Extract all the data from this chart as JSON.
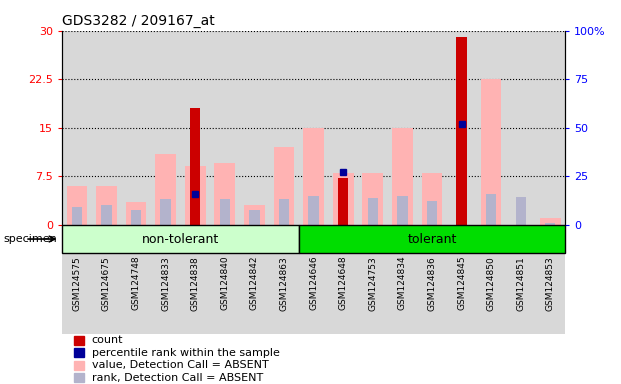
{
  "title": "GDS3282 / 209167_at",
  "samples": [
    "GSM124575",
    "GSM124675",
    "GSM124748",
    "GSM124833",
    "GSM124838",
    "GSM124840",
    "GSM124842",
    "GSM124863",
    "GSM124646",
    "GSM124648",
    "GSM124753",
    "GSM124834",
    "GSM124836",
    "GSM124845",
    "GSM124850",
    "GSM124851",
    "GSM124853"
  ],
  "group_labels": [
    "non-tolerant",
    "tolerant"
  ],
  "group_non_tolerant_count": 8,
  "group_tolerant_count": 9,
  "count_values": [
    0,
    0,
    0,
    0,
    18,
    0,
    0,
    0,
    0,
    7.2,
    0,
    0,
    0,
    29,
    0,
    0,
    0
  ],
  "percentile_values": [
    0,
    0,
    0,
    0,
    16,
    0,
    0,
    0,
    0,
    27,
    0,
    0,
    0,
    52,
    0,
    0,
    0
  ],
  "value_absent": [
    6,
    6,
    3.5,
    11,
    9,
    9.5,
    3,
    12,
    15,
    8,
    8,
    15,
    8,
    0,
    22.5,
    0,
    1
  ],
  "rank_absent": [
    9,
    10,
    7.5,
    13,
    16,
    13,
    7.5,
    13,
    15,
    9,
    13.5,
    15,
    12,
    15.5,
    16,
    14.5,
    1
  ],
  "ylim_left": [
    0,
    30
  ],
  "ylim_right": [
    0,
    100
  ],
  "yticks_left": [
    0,
    7.5,
    15,
    22.5,
    30
  ],
  "ytick_labels_left": [
    "0",
    "7.5",
    "15",
    "22.5",
    "30"
  ],
  "yticks_right": [
    0,
    25,
    50,
    75,
    100
  ],
  "ytick_labels_right": [
    "0",
    "25",
    "50",
    "75",
    "100%"
  ],
  "color_count": "#cc0000",
  "color_percentile": "#000099",
  "color_value_absent": "#ffb3b3",
  "color_rank_absent": "#b3b3cc",
  "background_plot": "#ffffff",
  "col_bg": "#d8d8d8",
  "background_group_nontol": "#ccffcc",
  "background_group_tol": "#00dd00",
  "specimen_label": "specimen",
  "legend_items": [
    {
      "label": "count",
      "color": "#cc0000"
    },
    {
      "label": "percentile rank within the sample",
      "color": "#000099"
    },
    {
      "label": "value, Detection Call = ABSENT",
      "color": "#ffb3b3"
    },
    {
      "label": "rank, Detection Call = ABSENT",
      "color": "#b3b3cc"
    }
  ]
}
